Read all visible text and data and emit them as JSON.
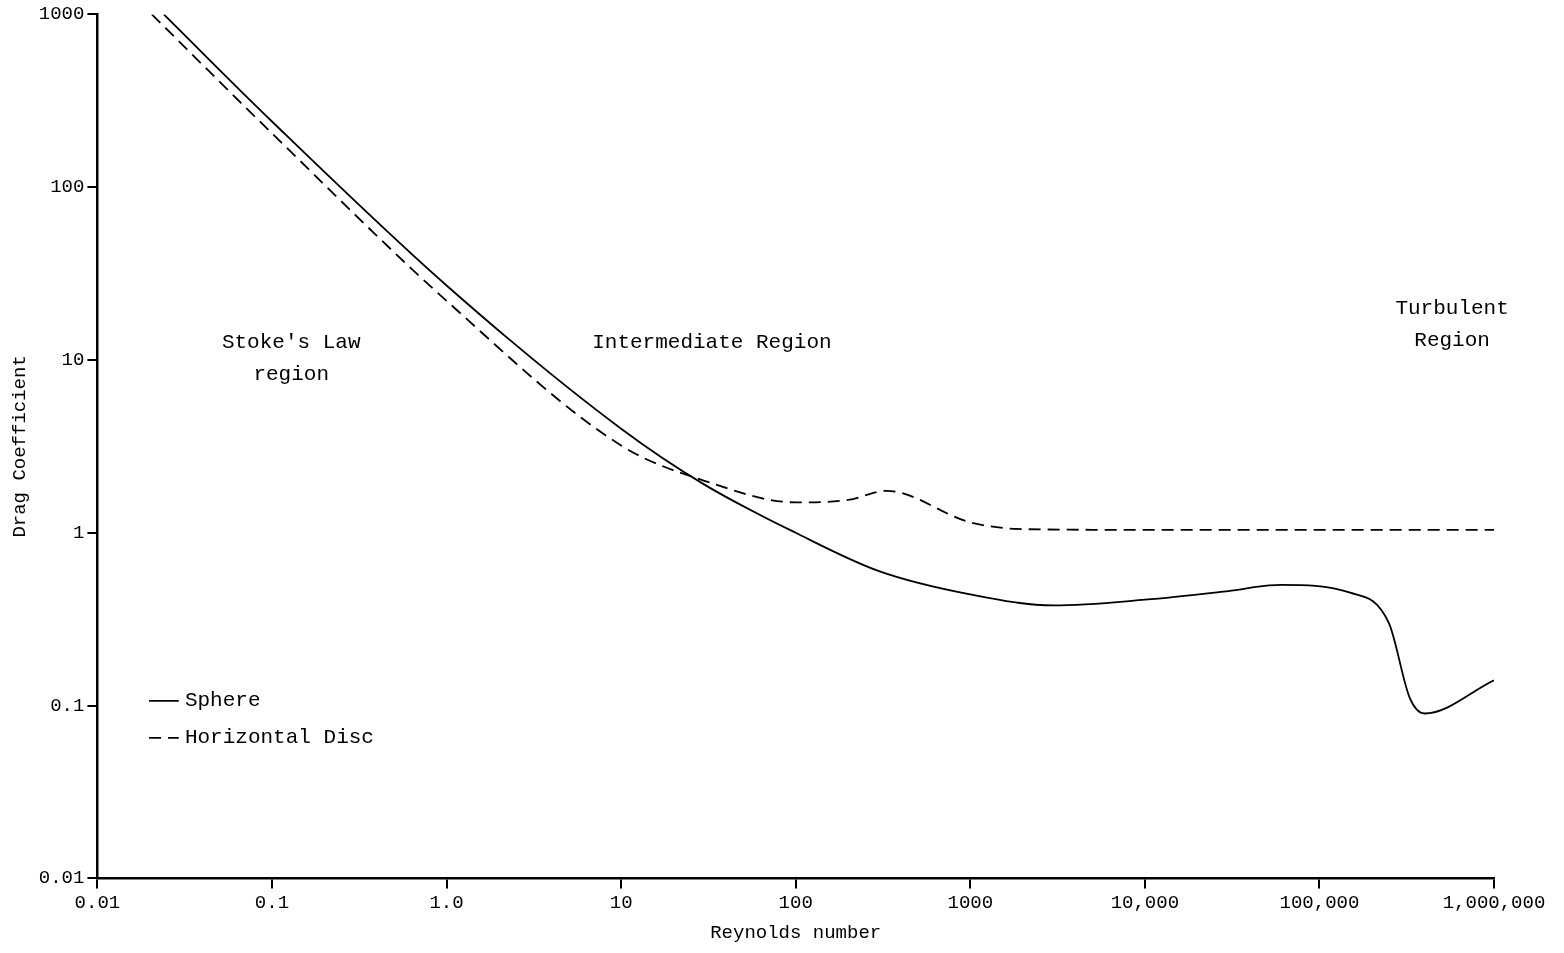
{
  "chart_data": {
    "type": "line",
    "xlabel": "Reynolds number",
    "ylabel": "Drag Coefficient",
    "log": "xy",
    "grid": false,
    "legend": "bottom left",
    "marker": "none",
    "xlim": [
      0.01,
      1000000
    ],
    "ylim": [
      0.01,
      1000
    ],
    "xticks": [
      0.01,
      0.1,
      {
        "value": 1,
        "label": "1.0"
      },
      10,
      100,
      1000,
      {
        "value": 10000,
        "label": "10,000"
      },
      {
        "value": 100000,
        "label": "100,000"
      },
      {
        "value": 1000000,
        "label": "1,000,000"
      }
    ],
    "yticks": [
      0.01,
      0.1,
      1,
      10,
      100,
      1000
    ],
    "series": [
      {
        "name": "Sphere",
        "color": "#000000",
        "line_style": "solid",
        "x": [
          0.024,
          0.1,
          1,
          10,
          30,
          100,
          300,
          1000,
          3000,
          10000,
          30000,
          60000,
          150000,
          250000,
          330000,
          400000,
          1000000
        ],
        "values": [
          1000,
          240,
          27,
          4,
          1.9,
          1,
          0.6,
          0.44,
          0.38,
          0.41,
          0.46,
          0.5,
          0.45,
          0.3,
          0.11,
          0.09,
          0.14
        ]
      },
      {
        "name": "Horizontal Disc",
        "color": "#000000",
        "line_style": "dashed",
        "x": [
          0.0205,
          0.1,
          1,
          10,
          30,
          100,
          200,
          330,
          1000,
          2000,
          10000,
          100000,
          1000000
        ],
        "values": [
          1000,
          205,
          22,
          3.2,
          2,
          1.5,
          1.55,
          1.75,
          1.15,
          1.05,
          1.04,
          1.04,
          1.04
        ]
      }
    ],
    "annotations": [
      "Stoke's Law\nregion",
      "Intermediate Region",
      "Turbulent\nRegion"
    ]
  }
}
